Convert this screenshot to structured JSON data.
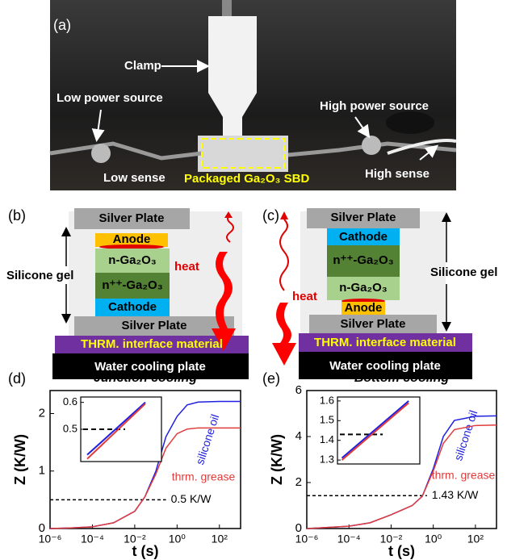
{
  "panel_a": {
    "label": "(a)",
    "annotations": [
      "Clamp",
      "Low power source",
      "High power source",
      "Low sense",
      "High sense"
    ],
    "highlight": "Packaged Ga₂O₃ SBD"
  },
  "panel_b": {
    "label": "(b)",
    "layers": [
      "Silver Plate",
      "Anode",
      "n-Ga₂O₃",
      "n⁺⁺-Ga₂O₃",
      "Cathode",
      "Silver Plate",
      "THRM. interface material",
      "Water cooling plate"
    ],
    "gel": "Silicone gel",
    "heat": "heat"
  },
  "panel_c": {
    "label": "(c)",
    "layers": [
      "Silver Plate",
      "Cathode",
      "n⁺⁺-Ga₂O₃",
      "n-Ga₂O₃",
      "Anode",
      "Silver Plate",
      "THRM. interface material",
      "Water cooling plate"
    ],
    "gel": "Silicone gel",
    "heat": "heat"
  },
  "chart_data": [
    {
      "type": "line",
      "label": "(d)",
      "title": "Junction cooling",
      "x_label": "t (s)",
      "y_label": "Z (K/W)",
      "log_x": true,
      "x": [
        1e-06,
        1e-05,
        0.0001,
        0.001,
        0.01,
        0.03,
        0.1,
        0.3,
        1,
        3,
        10,
        100,
        1000
      ],
      "xlim": [
        1e-06,
        1000
      ],
      "xticks": [
        {
          "value": 1e-06,
          "label": "10⁻⁶"
        },
        {
          "value": 0.0001,
          "label": "10⁻⁴"
        },
        {
          "value": 0.01,
          "label": "10⁻²"
        },
        {
          "value": 1,
          "label": "10⁰"
        },
        {
          "value": 100,
          "label": "10²"
        }
      ],
      "ylim": [
        0,
        2.4
      ],
      "yticks": [
        0,
        1,
        2
      ],
      "series": [
        {
          "name": "silicone oil",
          "color": "#2020e0",
          "values": [
            0,
            0.01,
            0.03,
            0.1,
            0.3,
            0.55,
            1.0,
            1.6,
            1.95,
            2.15,
            2.2,
            2.21,
            2.21
          ]
        },
        {
          "name": "thrm. grease",
          "color": "#e03c3c",
          "values": [
            0,
            0.01,
            0.03,
            0.1,
            0.3,
            0.55,
            0.95,
            1.4,
            1.65,
            1.73,
            1.75,
            1.75,
            1.75
          ]
        }
      ],
      "hline": 0.5,
      "hline_label": "0.5 K/W",
      "inset": {
        "x": [
          0.012,
          0.03
        ],
        "xlim": [
          0.01,
          0.035
        ],
        "ylim": [
          0.38,
          0.62
        ],
        "yticks": [
          0.5,
          0.6
        ],
        "hline": 0.5,
        "series": [
          {
            "color": "#2020e0",
            "values": [
              0.405,
              0.6
            ]
          },
          {
            "color": "#e03c3c",
            "values": [
              0.39,
              0.595
            ]
          }
        ]
      }
    },
    {
      "type": "line",
      "label": "(e)",
      "title": "Bottom cooling",
      "x_label": "t (s)",
      "y_label": "Z (K/W)",
      "log_x": true,
      "x": [
        1e-06,
        1e-05,
        0.0001,
        0.001,
        0.01,
        0.1,
        0.3,
        1,
        3,
        10,
        100,
        1000
      ],
      "xlim": [
        1e-06,
        1000
      ],
      "xticks": [
        {
          "value": 1e-06,
          "label": "10⁻⁶"
        },
        {
          "value": 0.0001,
          "label": "10⁻⁴"
        },
        {
          "value": 0.01,
          "label": "10⁻²"
        },
        {
          "value": 1,
          "label": "10⁰"
        },
        {
          "value": 100,
          "label": "10²"
        }
      ],
      "ylim": [
        0,
        6
      ],
      "yticks": [
        0,
        2,
        4,
        6
      ],
      "series": [
        {
          "name": "silicone oil",
          "color": "#2020e0",
          "values": [
            0,
            0.05,
            0.1,
            0.25,
            0.6,
            1.0,
            1.4,
            2.6,
            4.0,
            4.7,
            4.88,
            4.9
          ]
        },
        {
          "name": "thrm. grease",
          "color": "#e03c3c",
          "values": [
            0,
            0.05,
            0.1,
            0.25,
            0.6,
            1.0,
            1.4,
            2.5,
            3.7,
            4.3,
            4.48,
            4.5
          ]
        }
      ],
      "hline": 1.43,
      "hline_label": "1.43 K/W",
      "inset": {
        "x": [
          0.2,
          0.5
        ],
        "xlim": [
          0.18,
          0.55
        ],
        "ylim": [
          1.28,
          1.62
        ],
        "yticks": [
          1.3,
          1.4,
          1.5,
          1.6
        ],
        "hline": 1.43,
        "series": [
          {
            "color": "#2020e0",
            "values": [
              1.31,
              1.6
            ]
          },
          {
            "color": "#e03c3c",
            "values": [
              1.3,
              1.59
            ]
          }
        ]
      }
    }
  ]
}
